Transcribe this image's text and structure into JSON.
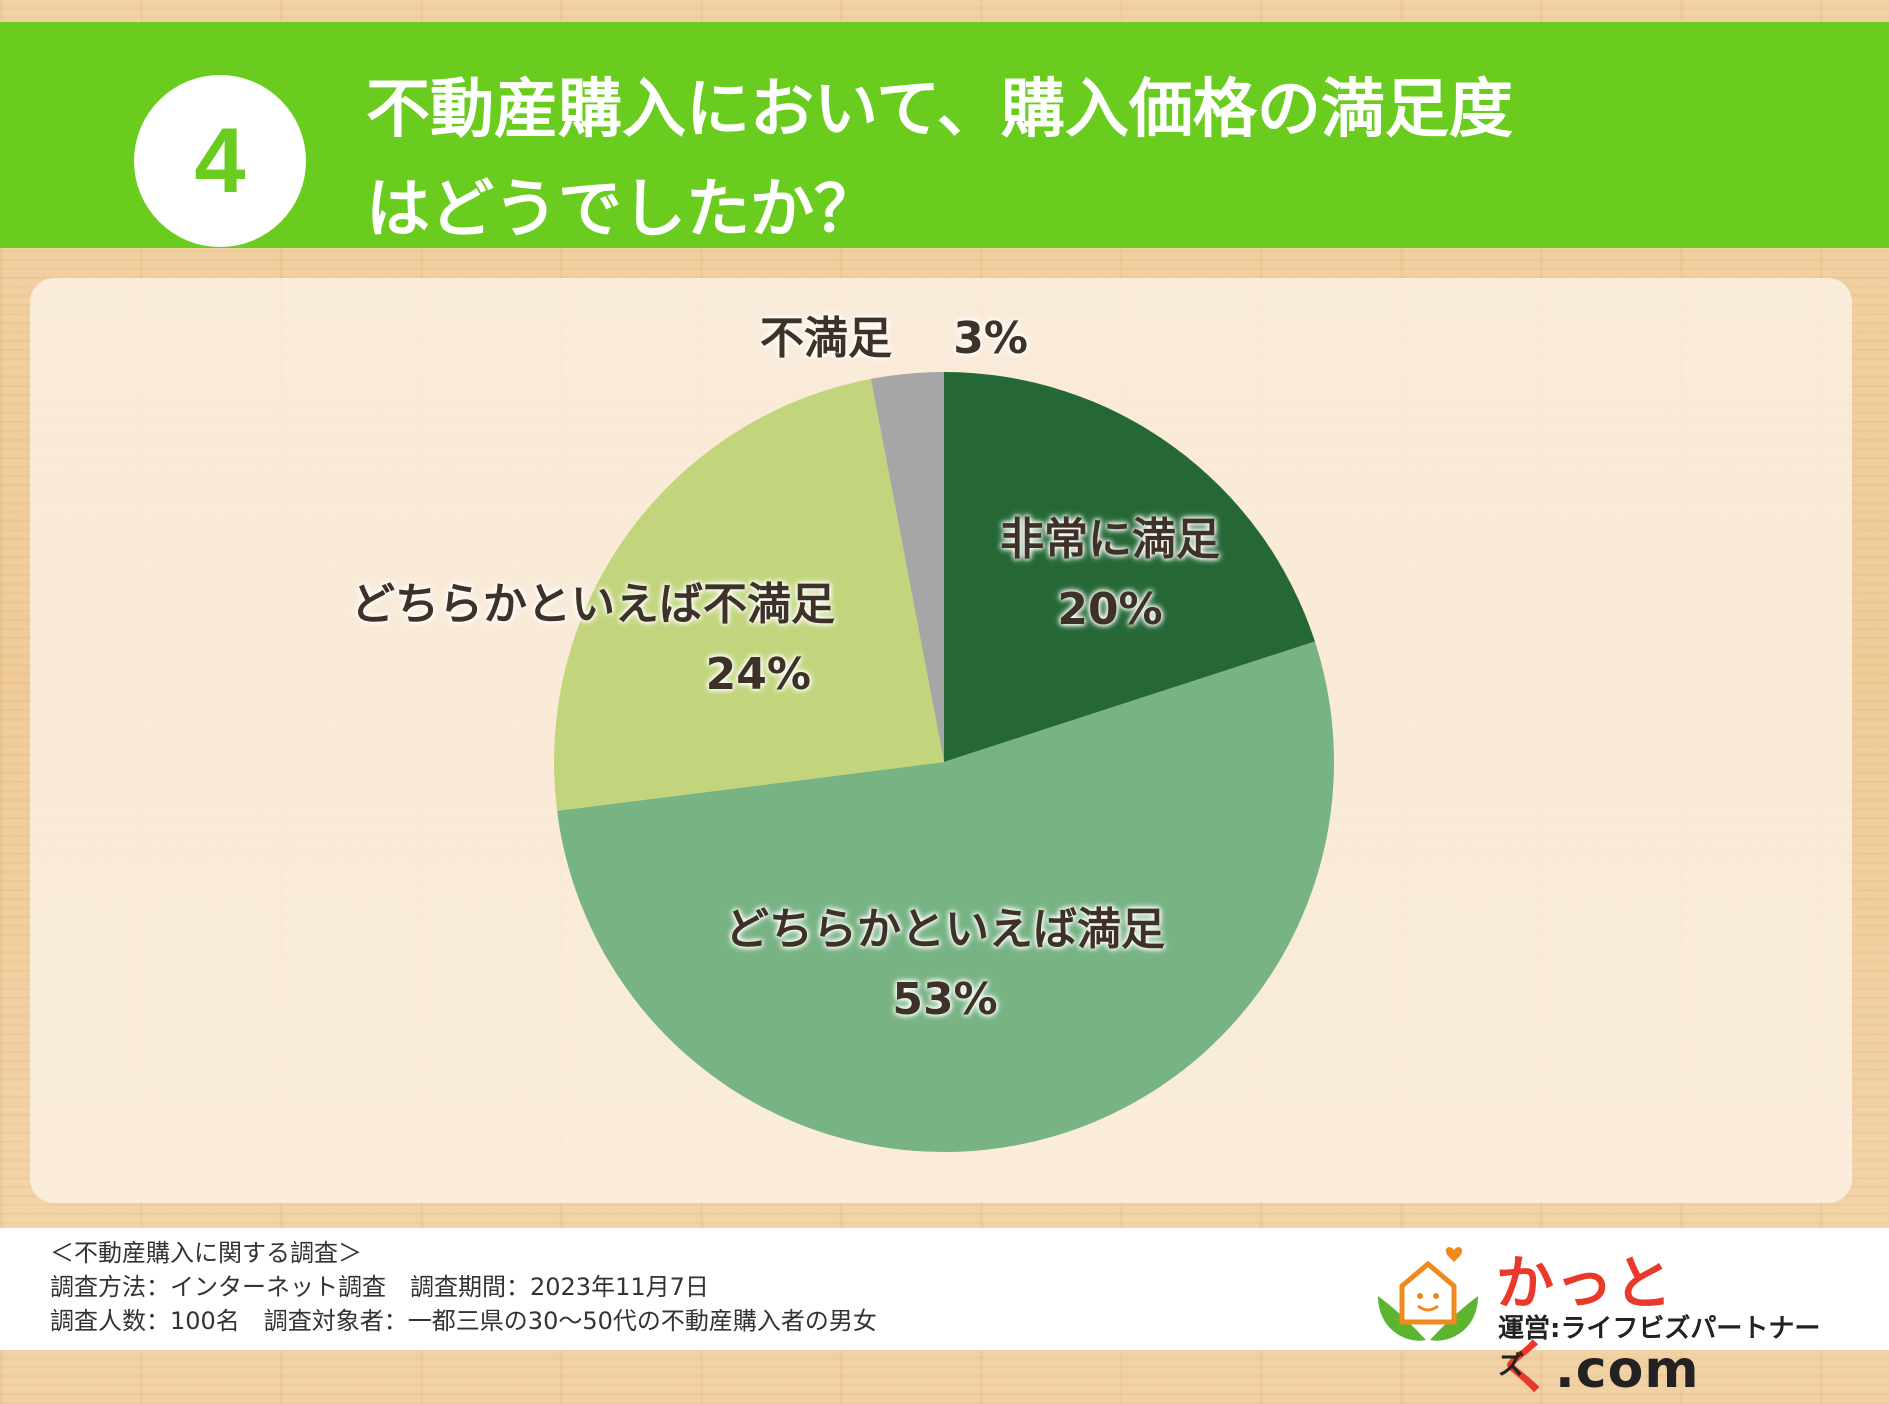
{
  "header": {
    "number": "4",
    "title_line1": "不動産購入において、購入価格の満足度",
    "title_line2": "はどうでしたか？"
  },
  "chart_data": {
    "type": "pie",
    "start": "12 o'clock, clockwise",
    "slices": [
      {
        "label": "非常に満足",
        "value": 20,
        "display": "20%",
        "color": "#256835"
      },
      {
        "label": "どちらかといえば満足",
        "value": 53,
        "display": "53%",
        "color": "#77b383"
      },
      {
        "label": "どちらかといえば不満足",
        "value": 24,
        "display": "24%",
        "color": "#c2d57c"
      },
      {
        "label": "不満足",
        "value": 3,
        "display": "3%",
        "color": "#a6a6a6"
      }
    ]
  },
  "footer": {
    "survey_title": "＜不動産購入に関する調査＞",
    "line1": "調査方法：インターネット調査　調査期間：2023年11月7日",
    "line2": "調査人数：100名　調査対象者：一都三県の30〜50代の不動産購入者の男女"
  },
  "logo": {
    "name": "かっとく",
    "suffix": ".com",
    "operator": "運営:ライフビズパートナーズ",
    "colors": {
      "leaf": "#5bb531",
      "house": "#f08a1c",
      "text": "#e8392a"
    }
  }
}
